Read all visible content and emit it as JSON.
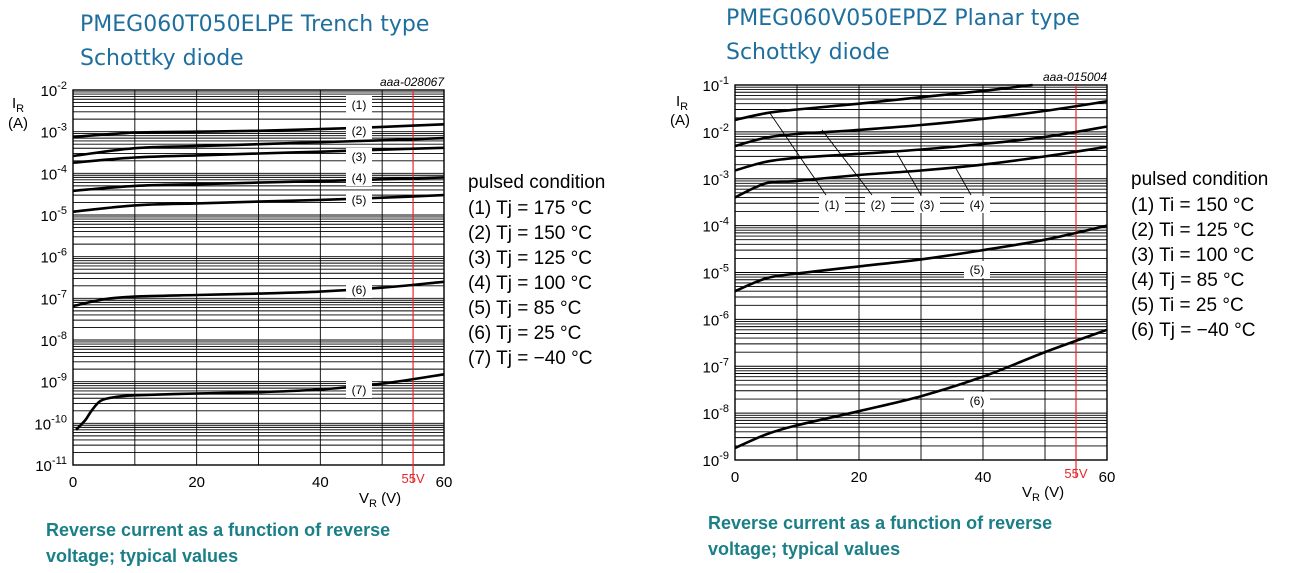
{
  "charts": [
    {
      "title_line1": "PMEG060T050ELPE Trench type",
      "title_line2": "Schottky diode",
      "ref": "aaa-028067",
      "caption_line1": "Reverse current as a function of reverse",
      "caption_line2": "voltage; typical values",
      "legend_header": "pulsed condition",
      "legend_items": [
        "(1) Tj = 175 °C",
        "(2) Tj = 150 °C",
        "(3) Tj = 125 °C",
        "(4) Tj = 100 °C",
        "(5) Tj = 85 °C",
        "(6) Tj = 25 °C",
        "(7) Tj = −40 °C"
      ]
    },
    {
      "title_line1": "PMEG060V050EPDZ Planar type",
      "title_line2": "Schottky diode",
      "ref": "aaa-015004",
      "caption_line1": "Reverse current as a function of reverse",
      "caption_line2": "voltage; typical values",
      "legend_header": "pulsed condition",
      "legend_items": [
        "(1) Ti = 150 °C",
        "(2) Ti = 125 °C",
        "(3) Ti = 100 °C",
        "(4) Tj = 85 °C",
        "(5) Ti = 25 °C",
        "(6) Tj = −40 °C"
      ]
    }
  ],
  "colors": {
    "title": "#1f6f9e",
    "caption": "#1a7f86",
    "marker": "#e8262b",
    "curve": "#000000",
    "grid": "#000000"
  },
  "chart_data": [
    {
      "type": "line",
      "xlabel": "VR (V)",
      "ylabel": "IR (A)",
      "xlim": [
        0,
        60
      ],
      "ylim": [
        1e-11,
        0.01
      ],
      "yscale": "log",
      "grid": true,
      "x_ticks": [
        0,
        20,
        40,
        60
      ],
      "y_ticks": [
        "10-11",
        "10-10",
        "10-9",
        "10-8",
        "10-7",
        "10-6",
        "10-5",
        "10-4",
        "10-3",
        "10-2"
      ],
      "marker_line": {
        "x": 55,
        "label": "55V"
      },
      "series": [
        {
          "name": "(1)",
          "x": [
            0,
            10,
            20,
            30,
            40,
            50,
            60
          ],
          "y": [
            0.00026,
            0.0004,
            0.00045,
            0.0005,
            0.00056,
            0.00062,
            0.0007
          ]
        },
        {
          "name": "(2)",
          "x": [
            0,
            10,
            20,
            30,
            40,
            50,
            60
          ],
          "y": [
            0.00075,
            0.00095,
            0.001,
            0.00105,
            0.00115,
            0.0013,
            0.0015
          ]
        },
        {
          "name": "(3)",
          "x": [
            0,
            10,
            20,
            30,
            40,
            50,
            60
          ],
          "y": [
            0.00018,
            0.00024,
            0.00027,
            0.0003,
            0.00033,
            0.00037,
            0.00041
          ]
        },
        {
          "name": "(4)",
          "x": [
            0,
            10,
            20,
            30,
            40,
            50,
            60
          ],
          "y": [
            3.8e-05,
            5e-05,
            5.5e-05,
            6e-05,
            6.5e-05,
            7.2e-05,
            8e-05
          ]
        },
        {
          "name": "(5)",
          "x": [
            0,
            10,
            20,
            30,
            40,
            50,
            60
          ],
          "y": [
            1.2e-05,
            1.7e-05,
            1.9e-05,
            2.1e-05,
            2.3e-05,
            2.6e-05,
            3e-05
          ]
        },
        {
          "name": "(6)",
          "x": [
            0,
            5,
            10,
            20,
            30,
            40,
            50,
            60
          ],
          "y": [
            6.5e-08,
            9.5e-08,
            1.1e-07,
            1.2e-07,
            1.3e-07,
            1.45e-07,
            1.8e-07,
            2.5e-07
          ]
        },
        {
          "name": "(7)",
          "x": [
            0.5,
            2,
            3,
            4.5,
            7,
            10,
            20,
            30,
            40,
            50,
            60
          ],
          "y": [
            7e-11,
            1.2e-10,
            2e-10,
            3.5e-10,
            4.3e-10,
            4.7e-10,
            5.2e-10,
            5.6e-10,
            6.5e-10,
            9e-10,
            1.5e-09
          ]
        }
      ]
    },
    {
      "type": "line",
      "xlabel": "VR (V)",
      "ylabel": "IR (A)",
      "xlim": [
        0,
        60
      ],
      "ylim": [
        1e-09,
        0.1
      ],
      "yscale": "log",
      "grid": true,
      "x_ticks": [
        0,
        20,
        40,
        60
      ],
      "y_ticks": [
        "10-9",
        "10-8",
        "10-7",
        "10-6",
        "10-5",
        "10-4",
        "10-3",
        "10-2",
        "10-1"
      ],
      "marker_line": {
        "x": 55,
        "label": "55V"
      },
      "series": [
        {
          "name": "(1)",
          "x": [
            0,
            5,
            10,
            20,
            30,
            40,
            48
          ],
          "y": [
            0.018,
            0.025,
            0.03,
            0.04,
            0.055,
            0.075,
            0.1
          ]
        },
        {
          "name": "(2)",
          "x": [
            0,
            5,
            10,
            20,
            30,
            40,
            50,
            60
          ],
          "y": [
            0.005,
            0.0075,
            0.009,
            0.011,
            0.014,
            0.019,
            0.028,
            0.045
          ]
        },
        {
          "name": "(3)",
          "x": [
            0,
            5,
            10,
            20,
            30,
            40,
            50,
            60
          ],
          "y": [
            0.0015,
            0.0023,
            0.0028,
            0.0034,
            0.0042,
            0.0055,
            0.0078,
            0.013
          ]
        },
        {
          "name": "(4)",
          "x": [
            0,
            5,
            10,
            20,
            30,
            40,
            50,
            60
          ],
          "y": [
            0.0004,
            0.0008,
            0.0009,
            0.0012,
            0.0015,
            0.002,
            0.003,
            0.0048
          ]
        },
        {
          "name": "(5)",
          "x": [
            0,
            5,
            10,
            20,
            30,
            40,
            50,
            60
          ],
          "y": [
            4e-06,
            7.5e-06,
            9.5e-06,
            1.35e-05,
            1.9e-05,
            3e-05,
            5e-05,
            0.0001
          ]
        },
        {
          "name": "(6)",
          "x": [
            0,
            5,
            10,
            20,
            30,
            40,
            50,
            60
          ],
          "y": [
            1.8e-09,
            3.5e-09,
            5.5e-09,
            1.1e-08,
            2.3e-08,
            6e-08,
            2e-07,
            6e-07
          ]
        }
      ]
    }
  ]
}
